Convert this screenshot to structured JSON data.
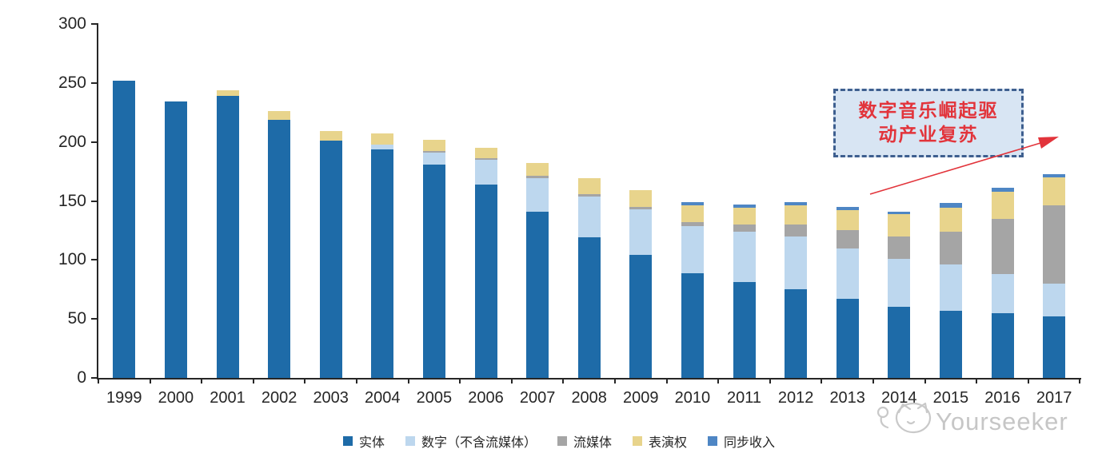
{
  "page": {
    "background": "#ffffff"
  },
  "axis": {
    "line_color": "#262626",
    "label_color": "#262626"
  },
  "chart_data": {
    "type": "bar",
    "stacked": true,
    "title": "",
    "xlabel": "",
    "ylabel": "",
    "categories": [
      "1999",
      "2000",
      "2001",
      "2002",
      "2003",
      "2004",
      "2005",
      "2006",
      "2007",
      "2008",
      "2009",
      "2010",
      "2011",
      "2012",
      "2013",
      "2014",
      "2015",
      "2016",
      "2017"
    ],
    "series": [
      {
        "name": "实体",
        "color": "#1e6ba8",
        "values": [
          252,
          234,
          239,
          219,
          201,
          194,
          181,
          164,
          141,
          119,
          104,
          89,
          81,
          75,
          67,
          60,
          57,
          55,
          52
        ]
      },
      {
        "name": "数字（不含流媒体）",
        "color": "#bdd7ee",
        "values": [
          0,
          0,
          0,
          0,
          0,
          4,
          10,
          21,
          28,
          35,
          39,
          40,
          43,
          45,
          43,
          41,
          39,
          33,
          28
        ]
      },
      {
        "name": "流媒体",
        "color": "#a5a5a5",
        "values": [
          0,
          0,
          0,
          0,
          0,
          0,
          1,
          1,
          2,
          2,
          2,
          3,
          6,
          10,
          15,
          19,
          28,
          47,
          66
        ]
      },
      {
        "name": "表演权",
        "color": "#e8d48c",
        "values": [
          0,
          0,
          5,
          7,
          8,
          9,
          10,
          9,
          11,
          13,
          14,
          14,
          14,
          16,
          17,
          19,
          20,
          23,
          24
        ]
      },
      {
        "name": "同步收入",
        "color": "#4e86c4",
        "values": [
          0,
          0,
          0,
          0,
          0,
          0,
          0,
          0,
          0,
          0,
          0,
          3,
          3,
          3,
          3,
          2,
          4,
          3,
          3
        ]
      }
    ],
    "ylim": [
      0,
      300
    ],
    "yticks": [
      0,
      50,
      100,
      150,
      200,
      250,
      300
    ],
    "grid": false,
    "legend_position": "bottom"
  },
  "annotation": {
    "line1": "数字音乐崛起驱",
    "line2": "动产业复苏",
    "box_border_color": "#3e5f8f",
    "box_fill_color": "#d8e5f3",
    "text_color": "#e2343b",
    "arrow_color": "#e2343b"
  },
  "watermark": {
    "brand": "Yourseeker",
    "icon": "cat-logo-icon",
    "color": "#c6c6c6"
  }
}
